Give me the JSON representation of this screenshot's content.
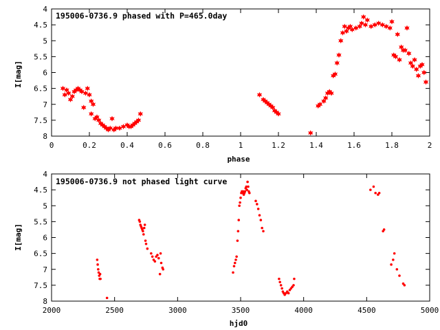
{
  "chart_data": [
    {
      "type": "scatter",
      "title": "195006-0736.9 phased with P=465.0day",
      "xlabel": "phase",
      "ylabel": "I[mag]",
      "xlim": [
        0,
        2
      ],
      "ylim": [
        8,
        4
      ],
      "y_inverted": true,
      "x_ticks": [
        "0",
        "0.2",
        "0.4",
        "0.6",
        "0.8",
        "1",
        "1.2",
        "1.4",
        "1.6",
        "1.8",
        "2"
      ],
      "y_ticks": [
        "4",
        "4.5",
        "5",
        "5.5",
        "6",
        "6.5",
        "7",
        "7.5",
        "8"
      ],
      "grid": false,
      "marker": "star",
      "color": "#ff0000",
      "points": [
        [
          0.06,
          6.5
        ],
        [
          0.07,
          6.7
        ],
        [
          0.08,
          6.55
        ],
        [
          0.09,
          6.65
        ],
        [
          0.1,
          6.85
        ],
        [
          0.11,
          6.75
        ],
        [
          0.12,
          6.6
        ],
        [
          0.13,
          6.55
        ],
        [
          0.14,
          6.5
        ],
        [
          0.15,
          6.55
        ],
        [
          0.16,
          6.6
        ],
        [
          0.17,
          7.1
        ],
        [
          0.18,
          6.65
        ],
        [
          0.19,
          6.5
        ],
        [
          0.2,
          6.7
        ],
        [
          0.21,
          6.9
        ],
        [
          0.21,
          7.3
        ],
        [
          0.22,
          7.0
        ],
        [
          0.23,
          7.45
        ],
        [
          0.24,
          7.4
        ],
        [
          0.25,
          7.5
        ],
        [
          0.26,
          7.6
        ],
        [
          0.27,
          7.65
        ],
        [
          0.28,
          7.7
        ],
        [
          0.29,
          7.75
        ],
        [
          0.3,
          7.8
        ],
        [
          0.31,
          7.75
        ],
        [
          0.32,
          7.45
        ],
        [
          0.33,
          7.8
        ],
        [
          0.34,
          7.75
        ],
        [
          0.36,
          7.75
        ],
        [
          0.38,
          7.7
        ],
        [
          0.4,
          7.65
        ],
        [
          0.41,
          7.7
        ],
        [
          0.42,
          7.7
        ],
        [
          0.43,
          7.65
        ],
        [
          0.44,
          7.6
        ],
        [
          0.45,
          7.55
        ],
        [
          0.46,
          7.5
        ],
        [
          0.47,
          7.3
        ],
        [
          1.1,
          6.7
        ],
        [
          1.12,
          6.85
        ],
        [
          1.13,
          6.9
        ],
        [
          1.14,
          6.95
        ],
        [
          1.15,
          7.0
        ],
        [
          1.16,
          7.05
        ],
        [
          1.17,
          7.1
        ],
        [
          1.18,
          7.2
        ],
        [
          1.19,
          7.25
        ],
        [
          1.2,
          7.3
        ],
        [
          1.37,
          7.9
        ],
        [
          1.41,
          7.05
        ],
        [
          1.42,
          7.0
        ],
        [
          1.44,
          6.9
        ],
        [
          1.45,
          6.8
        ],
        [
          1.46,
          6.65
        ],
        [
          1.47,
          6.6
        ],
        [
          1.48,
          6.65
        ],
        [
          1.49,
          6.1
        ],
        [
          1.5,
          6.05
        ],
        [
          1.51,
          5.7
        ],
        [
          1.52,
          5.45
        ],
        [
          1.53,
          5.0
        ],
        [
          1.54,
          4.75
        ],
        [
          1.55,
          4.55
        ],
        [
          1.56,
          4.7
        ],
        [
          1.57,
          4.6
        ],
        [
          1.58,
          4.55
        ],
        [
          1.59,
          4.65
        ],
        [
          1.61,
          4.6
        ],
        [
          1.63,
          4.55
        ],
        [
          1.64,
          4.45
        ],
        [
          1.65,
          4.25
        ],
        [
          1.66,
          4.5
        ],
        [
          1.67,
          4.35
        ],
        [
          1.69,
          4.55
        ],
        [
          1.71,
          4.5
        ],
        [
          1.73,
          4.45
        ],
        [
          1.75,
          4.5
        ],
        [
          1.77,
          4.55
        ],
        [
          1.79,
          4.6
        ],
        [
          1.8,
          4.4
        ],
        [
          1.81,
          5.45
        ],
        [
          1.82,
          5.5
        ],
        [
          1.83,
          4.8
        ],
        [
          1.84,
          5.6
        ],
        [
          1.85,
          5.2
        ],
        [
          1.86,
          5.3
        ],
        [
          1.87,
          5.3
        ],
        [
          1.88,
          4.6
        ],
        [
          1.89,
          5.4
        ],
        [
          1.9,
          5.7
        ],
        [
          1.91,
          5.8
        ],
        [
          1.92,
          5.6
        ],
        [
          1.93,
          5.9
        ],
        [
          1.94,
          6.1
        ],
        [
          1.95,
          5.8
        ],
        [
          1.96,
          5.75
        ],
        [
          1.97,
          6.0
        ],
        [
          1.98,
          6.3
        ]
      ]
    },
    {
      "type": "scatter",
      "title": "195006-0736.9 not phased light curve",
      "xlabel": "hjd0",
      "ylabel": "I[mag]",
      "xlim": [
        2000,
        5000
      ],
      "ylim": [
        8,
        4
      ],
      "y_inverted": true,
      "x_ticks": [
        "2000",
        "2500",
        "3000",
        "3500",
        "4000",
        "4500",
        "5000"
      ],
      "y_ticks": [
        "4",
        "4.5",
        "5",
        "5.5",
        "6",
        "6.5",
        "7",
        "7.5",
        "8"
      ],
      "grid": false,
      "marker": "dot",
      "color": "#ff0000",
      "points": [
        [
          2362,
          6.7
        ],
        [
          2366,
          6.85
        ],
        [
          2370,
          7.0
        ],
        [
          2374,
          7.1
        ],
        [
          2378,
          7.2
        ],
        [
          2382,
          7.3
        ],
        [
          2385,
          7.15
        ],
        [
          2388,
          7.3
        ],
        [
          2440,
          7.9
        ],
        [
          2695,
          5.45
        ],
        [
          2700,
          5.5
        ],
        [
          2705,
          5.6
        ],
        [
          2710,
          5.65
        ],
        [
          2715,
          5.7
        ],
        [
          2720,
          5.75
        ],
        [
          2725,
          5.8
        ],
        [
          2730,
          5.9
        ],
        [
          2735,
          5.7
        ],
        [
          2740,
          5.6
        ],
        [
          2745,
          6.1
        ],
        [
          2750,
          6.2
        ],
        [
          2760,
          6.35
        ],
        [
          2790,
          6.5
        ],
        [
          2800,
          6.6
        ],
        [
          2810,
          6.7
        ],
        [
          2820,
          6.75
        ],
        [
          2830,
          6.6
        ],
        [
          2840,
          6.55
        ],
        [
          2850,
          6.65
        ],
        [
          2860,
          7.15
        ],
        [
          2865,
          6.5
        ],
        [
          2870,
          6.8
        ],
        [
          2880,
          6.95
        ],
        [
          2885,
          7.0
        ],
        [
          3440,
          7.1
        ],
        [
          3448,
          6.9
        ],
        [
          3455,
          6.8
        ],
        [
          3462,
          6.7
        ],
        [
          3468,
          6.6
        ],
        [
          3475,
          6.1
        ],
        [
          3480,
          5.8
        ],
        [
          3485,
          5.45
        ],
        [
          3490,
          5.0
        ],
        [
          3495,
          4.9
        ],
        [
          3500,
          4.75
        ],
        [
          3505,
          4.6
        ],
        [
          3510,
          4.55
        ],
        [
          3515,
          4.6
        ],
        [
          3520,
          4.55
        ],
        [
          3525,
          4.65
        ],
        [
          3530,
          4.6
        ],
        [
          3535,
          4.55
        ],
        [
          3540,
          4.45
        ],
        [
          3545,
          4.4
        ],
        [
          3550,
          4.5
        ],
        [
          3555,
          4.25
        ],
        [
          3560,
          4.4
        ],
        [
          3565,
          4.55
        ],
        [
          3570,
          4.6
        ],
        [
          3620,
          4.85
        ],
        [
          3630,
          4.95
        ],
        [
          3640,
          5.1
        ],
        [
          3650,
          5.3
        ],
        [
          3660,
          5.45
        ],
        [
          3670,
          5.7
        ],
        [
          3680,
          5.8
        ],
        [
          3805,
          7.3
        ],
        [
          3812,
          7.4
        ],
        [
          3820,
          7.5
        ],
        [
          3828,
          7.6
        ],
        [
          3835,
          7.7
        ],
        [
          3842,
          7.75
        ],
        [
          3850,
          7.8
        ],
        [
          3860,
          7.75
        ],
        [
          3870,
          7.7
        ],
        [
          3880,
          7.75
        ],
        [
          3890,
          7.65
        ],
        [
          3900,
          7.6
        ],
        [
          3910,
          7.55
        ],
        [
          3920,
          7.5
        ],
        [
          3925,
          7.3
        ],
        [
          4530,
          4.5
        ],
        [
          4555,
          4.4
        ],
        [
          4570,
          4.6
        ],
        [
          4590,
          4.65
        ],
        [
          4600,
          4.6
        ],
        [
          4630,
          5.8
        ],
        [
          4638,
          5.75
        ],
        [
          4695,
          6.85
        ],
        [
          4710,
          6.7
        ],
        [
          4720,
          6.5
        ],
        [
          4740,
          7.0
        ],
        [
          4760,
          7.2
        ],
        [
          4790,
          7.45
        ],
        [
          4800,
          7.5
        ]
      ]
    }
  ]
}
